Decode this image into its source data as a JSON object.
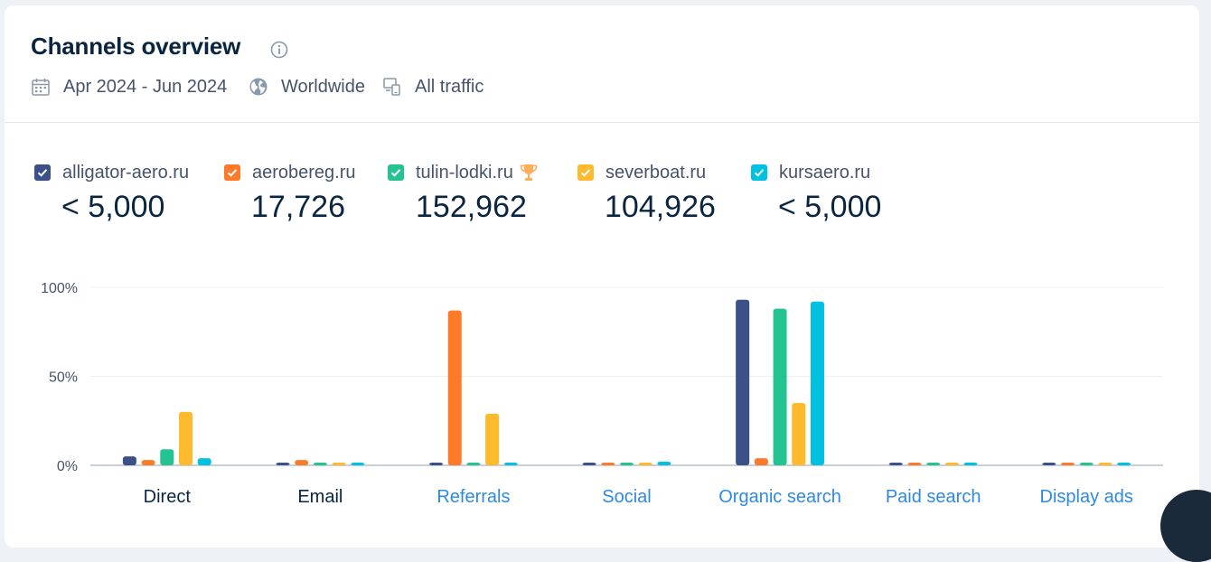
{
  "header": {
    "title": "Channels overview",
    "info_icon": "info-icon",
    "date_range": "Apr 2024 - Jun 2024",
    "region": "Worldwide",
    "traffic": "All traffic",
    "icons": {
      "date": "calendar-icon",
      "region": "globe-icon",
      "traffic": "devices-icon"
    }
  },
  "legend": [
    {
      "name": "alligator-aero.ru",
      "value": "< 5,000",
      "color": "#3c5088"
    },
    {
      "name": "aerobereg.ru",
      "value": "17,726",
      "color": "#fd7a28"
    },
    {
      "name": "tulin-lodki.ru",
      "value": "152,962",
      "color": "#25c392",
      "winner_icon": "trophy-icon"
    },
    {
      "name": "severboat.ru",
      "value": "104,926",
      "color": "#fcba2c"
    },
    {
      "name": "kursaero.ru",
      "value": "< 5,000",
      "color": "#00c2e0"
    }
  ],
  "chart_data": {
    "type": "bar",
    "categories": [
      "Direct",
      "Email",
      "Referrals",
      "Social",
      "Organic search",
      "Paid search",
      "Display ads"
    ],
    "category_link_colors": [
      "#092540",
      "#092540",
      "#2d8ae0",
      "#2d8ae0",
      "#2d8ae0",
      "#2d8ae0",
      "#2d8ae0"
    ],
    "yticks": [
      "100%",
      "50%",
      "0%"
    ],
    "ylim": [
      0,
      100
    ],
    "series": [
      {
        "name": "alligator-aero.ru",
        "color": "#3c5088",
        "values": [
          5,
          1,
          1,
          1,
          93,
          1,
          1
        ]
      },
      {
        "name": "aerobereg.ru",
        "color": "#fd7a28",
        "values": [
          3,
          3,
          87,
          1,
          4,
          1,
          1
        ]
      },
      {
        "name": "tulin-lodki.ru",
        "color": "#25c392",
        "values": [
          9,
          1,
          1,
          1,
          88,
          1,
          1
        ]
      },
      {
        "name": "severboat.ru",
        "color": "#fcba2c",
        "values": [
          30,
          1,
          29,
          1,
          35,
          1,
          1
        ]
      },
      {
        "name": "kursaero.ru",
        "color": "#00c2e0",
        "values": [
          4,
          1,
          1,
          2,
          92,
          1,
          1
        ]
      }
    ]
  }
}
